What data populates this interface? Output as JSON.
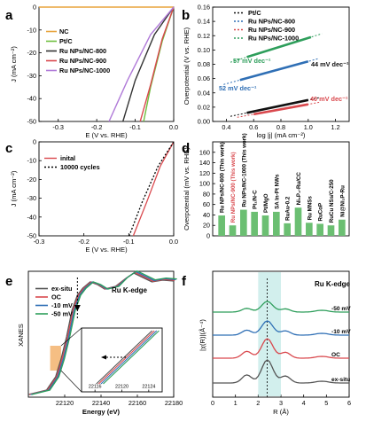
{
  "colors": {
    "NC": "#e8a33c",
    "Pt/C": "#6fbf3f",
    "Ru NPs/NC-800": "#333333",
    "Ru NPs/NC-900": "#d9484d",
    "Ru NPs/NC-1000": "#b07ad8",
    "tafel_Pt/C": "#111111",
    "tafel_800": "#2f6fb5",
    "tafel_900": "#d9484d",
    "tafel_1000": "#2e9e5b",
    "bar": "#6bbf72",
    "ex-situ": "#555555",
    "OC": "#d9484d",
    "-10 mV": "#2f6fb5",
    "-50 mV": "#2e9e5b",
    "highlight_e": "#f2a85a",
    "highlight_f": "#bfe8e6"
  },
  "chart_data": [
    {
      "panel": "a",
      "type": "line",
      "xlabel": "E (V vs. RHE)",
      "ylabel": "J (mA cm⁻²)",
      "xlim": [
        -0.35,
        0.0
      ],
      "ylim": [
        -50,
        0
      ],
      "xticks": [
        "-0.3",
        "-0.2",
        "-0.1",
        "0.0"
      ],
      "yticks": [
        "0",
        "-10",
        "-20",
        "-30",
        "-40",
        "-50"
      ],
      "legend": "top-left",
      "series": [
        {
          "name": "NC",
          "x": [
            -0.35,
            0.0
          ],
          "y": [
            0,
            0
          ]
        },
        {
          "name": "Pt/C",
          "x": [
            0.0,
            -0.03,
            -0.06,
            -0.078
          ],
          "y": [
            0,
            -15,
            -35,
            -50
          ]
        },
        {
          "name": "Ru NPs/NC-800",
          "x": [
            0.0,
            -0.05,
            -0.1,
            -0.132
          ],
          "y": [
            0,
            -12,
            -32,
            -50
          ]
        },
        {
          "name": "Ru NPs/NC-900",
          "x": [
            0.0,
            -0.03,
            -0.06,
            -0.087
          ],
          "y": [
            0,
            -14,
            -34,
            -50
          ]
        },
        {
          "name": "Ru NPs/NC-1000",
          "x": [
            0.0,
            -0.06,
            -0.12,
            -0.168
          ],
          "y": [
            0,
            -12,
            -32,
            -50
          ]
        }
      ]
    },
    {
      "panel": "b",
      "type": "scatter",
      "xlabel": "log |j| (mA cm⁻²)",
      "ylabel": "Overpotential (V vs. RHE)",
      "xlim": [
        0.3,
        1.3
      ],
      "ylim": [
        0.0,
        0.16
      ],
      "xticks": [
        "0.4",
        "0.6",
        "0.8",
        "1.0",
        "1.2"
      ],
      "yticks": [
        "0.00",
        "0.02",
        "0.04",
        "0.06",
        "0.08",
        "0.10",
        "0.12",
        "0.14",
        "0.16"
      ],
      "legend": "top-left",
      "series": [
        {
          "name": "Pt/C",
          "x": [
            0.55,
            1.0
          ],
          "y": [
            0.012,
            0.03
          ]
        },
        {
          "name": "Ru NPs/NC-800",
          "x": [
            0.5,
            1.0
          ],
          "y": [
            0.058,
            0.084
          ]
        },
        {
          "name": "Ru NPs/NC-900",
          "x": [
            0.6,
            1.0
          ],
          "y": [
            0.01,
            0.024
          ]
        },
        {
          "name": "Ru NPs/NC-1000",
          "x": [
            0.55,
            1.02
          ],
          "y": [
            0.09,
            0.118
          ]
        }
      ],
      "annotations": [
        "57 mV dec⁻¹",
        "44 mV dec⁻¹",
        "52 mV dec⁻¹",
        "40 mV dec⁻¹"
      ]
    },
    {
      "panel": "c",
      "type": "line",
      "xlabel": "E (V vs. RHE)",
      "ylabel": "J (mA cm⁻²)",
      "xlim": [
        -0.3,
        0.0
      ],
      "ylim": [
        -50,
        0
      ],
      "xticks": [
        "-0.3",
        "-0.2",
        "-0.1",
        "0.0"
      ],
      "yticks": [
        "0",
        "-10",
        "-20",
        "-30",
        "-40",
        "-50"
      ],
      "legend": "top-left",
      "series": [
        {
          "name": "inital",
          "x": [
            0.0,
            -0.03,
            -0.06,
            -0.09
          ],
          "y": [
            0,
            -13,
            -32,
            -50
          ]
        },
        {
          "name": "10000 cycles",
          "x": [
            0.0,
            -0.035,
            -0.07,
            -0.099
          ],
          "y": [
            0,
            -13,
            -32,
            -50
          ]
        }
      ]
    },
    {
      "panel": "d",
      "type": "bar",
      "ylabel": "Overpotential (mV vs. RHE)",
      "ylim": [
        0,
        180
      ],
      "yticks": [
        "0",
        "20",
        "40",
        "60",
        "80",
        "100",
        "120",
        "140",
        "160"
      ],
      "categories": [
        "Ru NPs/NC-800 (This work)",
        "Ru NPs/NC-900 (This work)",
        "Ru NPs/NC-1000 (This work)",
        "Pt₁/N-C",
        "Pt/MgO",
        "SA In-Pt NWs",
        "RuAu-0.2",
        "Ni₅P₄-Ru/CC",
        "Ru MNSs",
        "RuCoP",
        "RuCu NSs/C-250",
        "Ni@Ni₂P-Ru"
      ],
      "category_colors": [
        "#000000",
        "#d9484d",
        "#000000",
        "#000000",
        "#000000",
        "#000000",
        "#000000",
        "#000000",
        "#000000",
        "#000000",
        "#000000",
        "#000000"
      ],
      "values": [
        39,
        20,
        50,
        46,
        39,
        46,
        24,
        54,
        25,
        23,
        20,
        31
      ]
    },
    {
      "panel": "e",
      "type": "line",
      "title": "Ru K-edge",
      "xlabel": "Energy (eV)",
      "ylabel": "XANES",
      "xlim": [
        22100,
        22180
      ],
      "xticks": [
        "22120",
        "22140",
        "22160",
        "22180"
      ],
      "inset_xticks": [
        "22116",
        "22120",
        "22124"
      ],
      "legend": "top-left",
      "series": [
        {
          "name": "ex-situ"
        },
        {
          "name": "OC"
        },
        {
          "name": "-10 mV"
        },
        {
          "name": "-50 mV"
        }
      ]
    },
    {
      "panel": "f",
      "type": "line",
      "title": "Ru K-edge",
      "xlabel": "R (Å)",
      "ylabel": "|χ(R)|(Å⁻⁴)",
      "xlim": [
        0,
        6
      ],
      "xticks": [
        "0",
        "1",
        "2",
        "3",
        "4",
        "5",
        "6"
      ],
      "series": [
        {
          "name": "-50 mV"
        },
        {
          "name": "-10 mV"
        },
        {
          "name": "OC"
        },
        {
          "name": "ex-situ"
        }
      ]
    }
  ],
  "panel_labels": [
    "a",
    "b",
    "c",
    "d",
    "e",
    "f"
  ]
}
